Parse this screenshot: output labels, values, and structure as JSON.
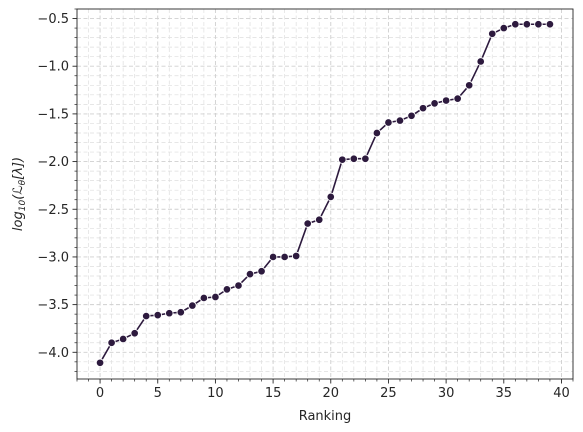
{
  "chart_data": {
    "type": "line",
    "xlabel": "Ranking",
    "ylabel_parts": [
      "log",
      "10",
      "(ℒ",
      "θ",
      "[λ])"
    ],
    "xlim": [
      -2,
      41
    ],
    "ylim": [
      -4.28,
      -0.4
    ],
    "xticks": [
      0,
      5,
      10,
      15,
      20,
      25,
      30,
      35,
      40
    ],
    "yticks": [
      -4.0,
      -3.5,
      -3.0,
      -2.5,
      -2.0,
      -1.5,
      -1.0,
      -0.5
    ],
    "ytick_labels": [
      "−4.0",
      "−3.5",
      "−3.0",
      "−2.5",
      "−2.0",
      "−1.5",
      "−1.0",
      "−0.5"
    ],
    "grid": true,
    "colors": {
      "line": "#2d1a3e",
      "marker": "#2d1a3e",
      "marker_edge": "#ffffff"
    },
    "series": [
      {
        "x": [
          0,
          1,
          2,
          3,
          4,
          5,
          6,
          7,
          8,
          9,
          10,
          11,
          12,
          13,
          14,
          15,
          16,
          17,
          18,
          19,
          20,
          21,
          22,
          23,
          24,
          25,
          26,
          27,
          28,
          29,
          30,
          31,
          32,
          33,
          34,
          35,
          36,
          37,
          38,
          39
        ],
        "values": [
          -4.11,
          -3.9,
          -3.86,
          -3.8,
          -3.62,
          -3.61,
          -3.59,
          -3.58,
          -3.51,
          -3.43,
          -3.42,
          -3.34,
          -3.3,
          -3.18,
          -3.15,
          -3.0,
          -3.0,
          -2.99,
          -2.65,
          -2.61,
          -2.37,
          -1.98,
          -1.97,
          -1.97,
          -1.7,
          -1.59,
          -1.57,
          -1.52,
          -1.44,
          -1.39,
          -1.36,
          -1.34,
          -1.2,
          -0.95,
          -0.66,
          -0.6,
          -0.56,
          -0.56,
          -0.56,
          -0.56
        ]
      }
    ]
  }
}
